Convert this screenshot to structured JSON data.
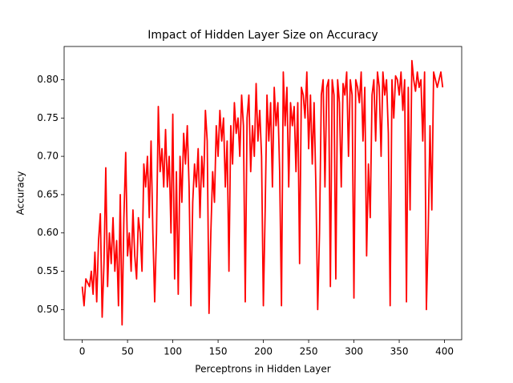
{
  "chart_data": {
    "type": "line",
    "title": "Impact of Hidden Layer Size on Accuracy",
    "x_label": "Perceptrons in Hidden Layer",
    "y_label": "Accuracy",
    "xlim": [
      -20,
      419
    ],
    "ylim": [
      0.4606,
      0.8434
    ],
    "xticks": [
      0,
      50,
      100,
      150,
      200,
      250,
      300,
      350,
      400
    ],
    "yticks": [
      {
        "value": 0.5,
        "label": "0.50"
      },
      {
        "value": 0.55,
        "label": "0.55"
      },
      {
        "value": 0.6,
        "label": "0.60"
      },
      {
        "value": 0.65,
        "label": "0.65"
      },
      {
        "value": 0.7,
        "label": "0.70"
      },
      {
        "value": 0.75,
        "label": "0.75"
      },
      {
        "value": 0.8,
        "label": "0.80"
      }
    ],
    "grid": false,
    "x": [
      0,
      2,
      4,
      6,
      8,
      10,
      12,
      14,
      16,
      18,
      20,
      22,
      24,
      26,
      28,
      30,
      32,
      34,
      36,
      38,
      40,
      42,
      44,
      46,
      48,
      50,
      52,
      54,
      56,
      58,
      60,
      62,
      64,
      66,
      68,
      70,
      72,
      74,
      76,
      78,
      80,
      82,
      84,
      86,
      88,
      90,
      92,
      94,
      96,
      98,
      100,
      102,
      104,
      106,
      108,
      110,
      112,
      114,
      116,
      118,
      120,
      122,
      124,
      126,
      128,
      130,
      132,
      134,
      136,
      138,
      140,
      142,
      144,
      146,
      148,
      150,
      152,
      154,
      156,
      158,
      160,
      162,
      164,
      166,
      168,
      170,
      172,
      174,
      176,
      178,
      180,
      182,
      184,
      186,
      188,
      190,
      192,
      194,
      196,
      198,
      200,
      202,
      204,
      206,
      208,
      210,
      212,
      214,
      216,
      218,
      220,
      222,
      224,
      226,
      228,
      230,
      232,
      234,
      236,
      238,
      240,
      242,
      244,
      246,
      248,
      250,
      252,
      254,
      256,
      258,
      260,
      262,
      264,
      266,
      268,
      270,
      272,
      274,
      276,
      278,
      280,
      282,
      284,
      286,
      288,
      290,
      292,
      294,
      296,
      298,
      300,
      302,
      304,
      306,
      308,
      310,
      312,
      314,
      316,
      318,
      320,
      322,
      324,
      326,
      328,
      330,
      332,
      334,
      336,
      338,
      340,
      342,
      344,
      346,
      348,
      350,
      352,
      354,
      356,
      358,
      360,
      362,
      364,
      366,
      368,
      370,
      372,
      374,
      376,
      378,
      380,
      382,
      384,
      386,
      388,
      390,
      392,
      394,
      396,
      398
    ],
    "series": [
      {
        "name": "Accuracy",
        "color": "#ff0000",
        "values": [
          0.53,
          0.505,
          0.54,
          0.535,
          0.53,
          0.55,
          0.52,
          0.575,
          0.51,
          0.59,
          0.625,
          0.49,
          0.56,
          0.685,
          0.53,
          0.6,
          0.56,
          0.62,
          0.55,
          0.59,
          0.505,
          0.65,
          0.48,
          0.62,
          0.705,
          0.57,
          0.6,
          0.55,
          0.63,
          0.57,
          0.54,
          0.62,
          0.6,
          0.55,
          0.69,
          0.66,
          0.7,
          0.62,
          0.72,
          0.6,
          0.51,
          0.6,
          0.765,
          0.68,
          0.71,
          0.66,
          0.735,
          0.66,
          0.7,
          0.6,
          0.755,
          0.54,
          0.68,
          0.52,
          0.7,
          0.64,
          0.73,
          0.69,
          0.74,
          0.66,
          0.505,
          0.64,
          0.69,
          0.66,
          0.71,
          0.62,
          0.7,
          0.66,
          0.76,
          0.72,
          0.495,
          0.6,
          0.68,
          0.64,
          0.74,
          0.7,
          0.76,
          0.72,
          0.75,
          0.66,
          0.72,
          0.55,
          0.74,
          0.69,
          0.77,
          0.73,
          0.75,
          0.7,
          0.78,
          0.74,
          0.51,
          0.75,
          0.78,
          0.68,
          0.74,
          0.7,
          0.795,
          0.72,
          0.76,
          0.7,
          0.505,
          0.63,
          0.78,
          0.72,
          0.77,
          0.66,
          0.79,
          0.74,
          0.77,
          0.68,
          0.505,
          0.81,
          0.74,
          0.79,
          0.66,
          0.77,
          0.74,
          0.765,
          0.68,
          0.77,
          0.56,
          0.79,
          0.78,
          0.75,
          0.81,
          0.71,
          0.78,
          0.69,
          0.77,
          0.66,
          0.5,
          0.6,
          0.78,
          0.8,
          0.66,
          0.79,
          0.8,
          0.53,
          0.8,
          0.78,
          0.54,
          0.8,
          0.77,
          0.66,
          0.795,
          0.78,
          0.81,
          0.7,
          0.8,
          0.78,
          0.515,
          0.8,
          0.79,
          0.77,
          0.81,
          0.72,
          0.79,
          0.57,
          0.69,
          0.62,
          0.78,
          0.8,
          0.72,
          0.81,
          0.79,
          0.7,
          0.81,
          0.78,
          0.8,
          0.73,
          0.505,
          0.8,
          0.75,
          0.805,
          0.8,
          0.78,
          0.81,
          0.76,
          0.8,
          0.51,
          0.79,
          0.63,
          0.825,
          0.8,
          0.785,
          0.81,
          0.79,
          0.8,
          0.72,
          0.81,
          0.5,
          0.6,
          0.74,
          0.63,
          0.81,
          0.8,
          0.79,
          0.8,
          0.81,
          0.79
        ]
      }
    ]
  }
}
